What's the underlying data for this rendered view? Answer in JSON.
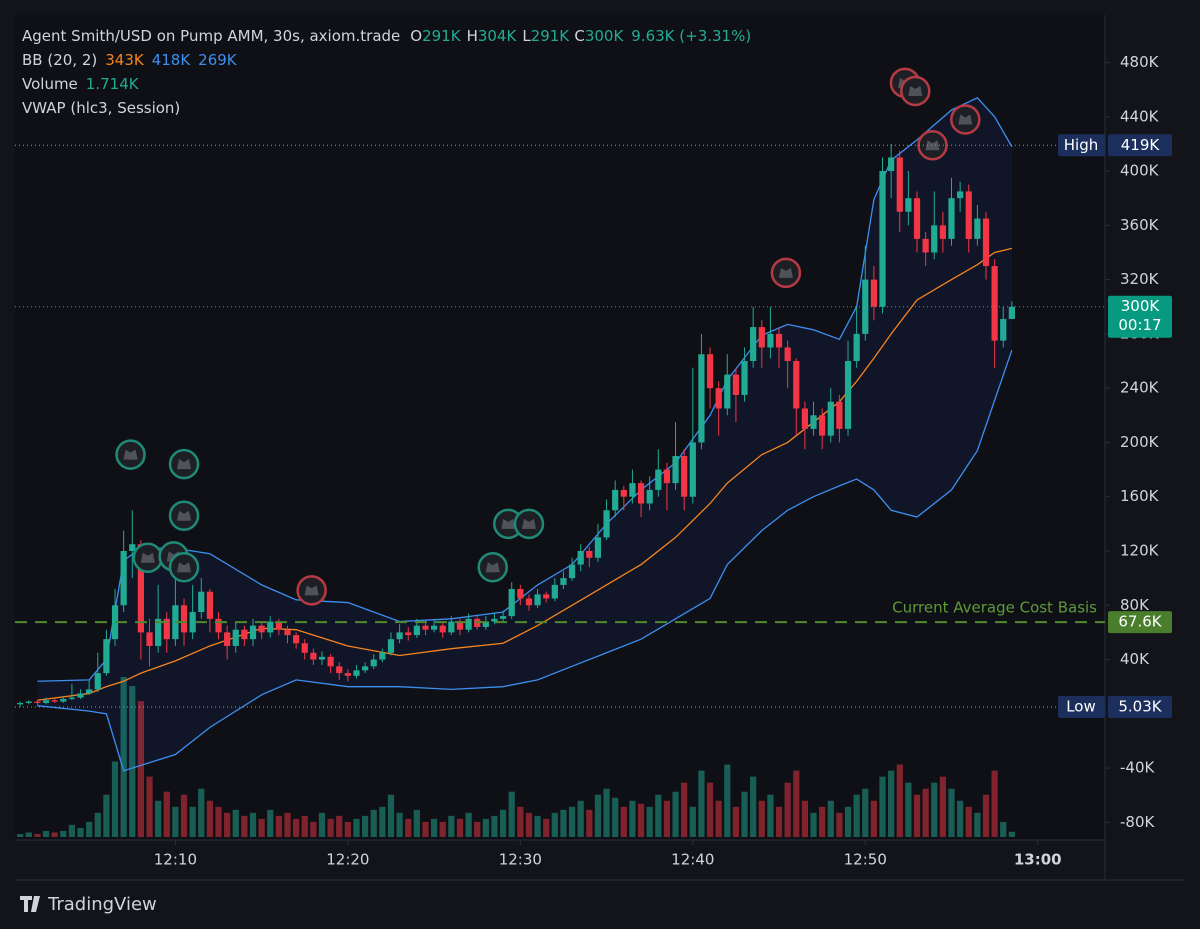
{
  "chart_data": {
    "type": "candlestick",
    "title": "Agent Smith/USD on Pump AMM, 30s, axiom.trade",
    "ohlc_legend": [
      {
        "key": "O",
        "label": "291K"
      },
      {
        "key": "H",
        "label": "304K"
      },
      {
        "key": "L",
        "label": "291K"
      },
      {
        "key": "C",
        "label": "300K"
      }
    ],
    "change_label": "9.63K (+3.31%)",
    "indicators": [
      {
        "name": "BB (20, 2)",
        "labels": [
          "343K",
          "418K",
          "269K"
        ]
      },
      {
        "name": "Volume",
        "labels": [
          "1.714K"
        ]
      },
      {
        "name": "VWAP (hlc3, Session)",
        "labels": []
      }
    ],
    "up_color": "#22ab94",
    "down_color": "#f23645",
    "x": [
      1,
      1.5,
      2,
      2.5,
      3,
      3.5,
      4,
      4.5,
      5,
      5.5,
      6,
      6.5,
      7,
      7.5,
      8,
      8.5,
      9,
      9.5,
      10,
      10.5,
      11,
      11.5,
      12,
      12.5,
      13,
      13.5,
      14,
      14.5,
      15,
      15.5,
      16,
      16.5,
      17,
      17.5,
      18,
      18.5,
      19,
      19.5,
      20,
      20.5,
      21,
      21.5,
      22,
      22.5,
      23,
      23.5,
      24,
      24.5,
      25,
      25.5,
      26,
      26.5,
      27,
      27.5,
      28,
      28.5,
      29,
      29.5,
      30,
      30.5,
      31,
      31.5,
      32,
      32.5,
      33,
      33.5,
      34,
      34.5,
      35,
      35.5,
      36,
      36.5,
      37,
      37.5,
      38,
      38.5,
      39,
      39.5,
      40,
      40.5,
      41,
      41.5,
      42,
      42.5,
      43,
      43.5,
      44,
      44.5,
      45,
      45.5,
      46,
      46.5,
      47,
      47.5,
      48,
      48.5,
      49,
      49.5,
      50,
      50.5,
      51,
      51.5,
      52,
      52.5,
      53,
      53.5,
      54,
      54.5,
      55,
      55.5,
      56,
      56.5,
      57,
      57.5,
      58,
      58.5
    ],
    "candles": [
      [
        7,
        9,
        5,
        8
      ],
      [
        8,
        10,
        7,
        9
      ],
      [
        9,
        10,
        6,
        8
      ],
      [
        8,
        12,
        7,
        10
      ],
      [
        10,
        11,
        8,
        9
      ],
      [
        9,
        13,
        8,
        11
      ],
      [
        11,
        22,
        10,
        12
      ],
      [
        12,
        18,
        11,
        15
      ],
      [
        15,
        25,
        14,
        18
      ],
      [
        18,
        45,
        16,
        30
      ],
      [
        30,
        62,
        28,
        55
      ],
      [
        55,
        92,
        50,
        80
      ],
      [
        80,
        135,
        75,
        120
      ],
      [
        120,
        150,
        100,
        125
      ],
      [
        125,
        128,
        40,
        60
      ],
      [
        60,
        70,
        35,
        50
      ],
      [
        50,
        95,
        45,
        70
      ],
      [
        70,
        75,
        45,
        55
      ],
      [
        55,
        105,
        50,
        80
      ],
      [
        80,
        85,
        50,
        60
      ],
      [
        60,
        95,
        55,
        75
      ],
      [
        75,
        100,
        70,
        90
      ],
      [
        90,
        92,
        60,
        70
      ],
      [
        70,
        75,
        55,
        60
      ],
      [
        60,
        65,
        40,
        50
      ],
      [
        50,
        68,
        45,
        62
      ],
      [
        62,
        65,
        50,
        55
      ],
      [
        55,
        70,
        50,
        65
      ],
      [
        65,
        68,
        55,
        60
      ],
      [
        60,
        72,
        56,
        68
      ],
      [
        68,
        70,
        58,
        62
      ],
      [
        62,
        65,
        52,
        58
      ],
      [
        58,
        60,
        48,
        52
      ],
      [
        52,
        55,
        40,
        45
      ],
      [
        45,
        48,
        36,
        40
      ],
      [
        40,
        46,
        36,
        42
      ],
      [
        42,
        44,
        30,
        35
      ],
      [
        35,
        38,
        25,
        30
      ],
      [
        30,
        33,
        24,
        28
      ],
      [
        28,
        36,
        26,
        32
      ],
      [
        32,
        38,
        30,
        35
      ],
      [
        35,
        44,
        33,
        40
      ],
      [
        40,
        48,
        38,
        45
      ],
      [
        45,
        60,
        43,
        55
      ],
      [
        55,
        66,
        52,
        60
      ],
      [
        60,
        64,
        54,
        58
      ],
      [
        58,
        70,
        56,
        65
      ],
      [
        65,
        68,
        58,
        62
      ],
      [
        62,
        70,
        60,
        65
      ],
      [
        65,
        68,
        56,
        60
      ],
      [
        60,
        72,
        58,
        68
      ],
      [
        68,
        70,
        58,
        62
      ],
      [
        62,
        74,
        60,
        70
      ],
      [
        70,
        72,
        62,
        64
      ],
      [
        64,
        72,
        62,
        68
      ],
      [
        68,
        74,
        66,
        70
      ],
      [
        70,
        76,
        68,
        72
      ],
      [
        72,
        97,
        70,
        92
      ],
      [
        92,
        95,
        80,
        85
      ],
      [
        85,
        88,
        76,
        80
      ],
      [
        80,
        92,
        78,
        88
      ],
      [
        88,
        90,
        82,
        85
      ],
      [
        85,
        100,
        83,
        95
      ],
      [
        95,
        105,
        92,
        100
      ],
      [
        100,
        115,
        98,
        110
      ],
      [
        110,
        125,
        105,
        120
      ],
      [
        120,
        123,
        108,
        115
      ],
      [
        115,
        140,
        112,
        130
      ],
      [
        130,
        158,
        128,
        150
      ],
      [
        150,
        172,
        145,
        165
      ],
      [
        165,
        168,
        150,
        160
      ],
      [
        160,
        180,
        155,
        170
      ],
      [
        170,
        172,
        145,
        155
      ],
      [
        155,
        175,
        150,
        165
      ],
      [
        165,
        195,
        160,
        180
      ],
      [
        180,
        185,
        150,
        170
      ],
      [
        170,
        215,
        165,
        190
      ],
      [
        190,
        195,
        150,
        160
      ],
      [
        160,
        255,
        155,
        200
      ],
      [
        200,
        280,
        195,
        265
      ],
      [
        265,
        270,
        225,
        240
      ],
      [
        240,
        245,
        205,
        225
      ],
      [
        225,
        265,
        220,
        250
      ],
      [
        250,
        255,
        215,
        235
      ],
      [
        235,
        270,
        230,
        260
      ],
      [
        260,
        300,
        255,
        285
      ],
      [
        285,
        290,
        255,
        270
      ],
      [
        270,
        300,
        262,
        280
      ],
      [
        280,
        285,
        255,
        270
      ],
      [
        270,
        275,
        240,
        260
      ],
      [
        260,
        262,
        205,
        225
      ],
      [
        225,
        230,
        195,
        210
      ],
      [
        210,
        230,
        205,
        220
      ],
      [
        220,
        225,
        195,
        205
      ],
      [
        205,
        240,
        200,
        230
      ],
      [
        230,
        235,
        200,
        210
      ],
      [
        210,
        275,
        205,
        260
      ],
      [
        260,
        300,
        255,
        280
      ],
      [
        280,
        345,
        275,
        320
      ],
      [
        320,
        330,
        290,
        300
      ],
      [
        300,
        410,
        295,
        400
      ],
      [
        400,
        420,
        380,
        410
      ],
      [
        410,
        415,
        355,
        370
      ],
      [
        370,
        400,
        360,
        380
      ],
      [
        380,
        385,
        340,
        350
      ],
      [
        350,
        355,
        330,
        340
      ],
      [
        340,
        385,
        335,
        360
      ],
      [
        360,
        370,
        340,
        350
      ],
      [
        350,
        395,
        345,
        380
      ],
      [
        380,
        392,
        370,
        385
      ],
      [
        385,
        390,
        340,
        350
      ],
      [
        350,
        375,
        345,
        365
      ],
      [
        365,
        370,
        320,
        330
      ],
      [
        330,
        335,
        255,
        275
      ],
      [
        275,
        300,
        270,
        291
      ],
      [
        291,
        304,
        291,
        300
      ]
    ],
    "volume": [
      1,
      1.5,
      1,
      2,
      1.5,
      2,
      4,
      3,
      5,
      8,
      14,
      25,
      53,
      50,
      45,
      20,
      12,
      15,
      10,
      14,
      10,
      16,
      12,
      10,
      8,
      9,
      7,
      8,
      6,
      9,
      7,
      8,
      6,
      7,
      5,
      8,
      6,
      7,
      5,
      6,
      7,
      9,
      10,
      14,
      8,
      6,
      9,
      5,
      6,
      5,
      7,
      6,
      8,
      5,
      6,
      7,
      9,
      15,
      10,
      8,
      7,
      6,
      8,
      9,
      10,
      12,
      9,
      14,
      16,
      13,
      10,
      12,
      11,
      10,
      14,
      12,
      15,
      18,
      10,
      22,
      18,
      12,
      24,
      10,
      15,
      20,
      12,
      14,
      10,
      18,
      22,
      12,
      8,
      10,
      12,
      8,
      10,
      14,
      16,
      12,
      20,
      22,
      24,
      18,
      14,
      16,
      18,
      20,
      16,
      12,
      10,
      8,
      14,
      22,
      5,
      1.714
    ],
    "bands": {
      "x": [
        2,
        5,
        6,
        7,
        8,
        10,
        12,
        15,
        17,
        20,
        23,
        26,
        29,
        31,
        33,
        35,
        37,
        39,
        41,
        42,
        44,
        45.5,
        47,
        48.5,
        49.5,
        50.5,
        51.5,
        53,
        55,
        56.5,
        57.5,
        58.5
      ],
      "series": [
        {
          "color": "#f7841e",
          "values": [
            10,
            15,
            20,
            24,
            30,
            39,
            50,
            63,
            62,
            50,
            43,
            48,
            52,
            65,
            80,
            95,
            110,
            130,
            155,
            170,
            191,
            200,
            215,
            230,
            245,
            262,
            280,
            305,
            320,
            331,
            340,
            343
          ]
        },
        {
          "color": "#3d8ef0",
          "values": [
            24,
            25,
            40,
            113,
            122,
            122,
            118,
            95,
            84,
            82,
            68,
            70,
            75,
            95,
            110,
            140,
            165,
            185,
            220,
            246,
            279,
            287,
            283,
            276,
            300,
            379,
            408,
            423,
            445,
            454,
            440,
            418
          ]
        },
        {
          "color": "#3d8ef0",
          "values": [
            6,
            2,
            0,
            -42,
            -38,
            -30,
            -10,
            14,
            25,
            20,
            20,
            18,
            20,
            25,
            35,
            45,
            55,
            70,
            85,
            110,
            135,
            150,
            160,
            168,
            173,
            165,
            150,
            145,
            165,
            194,
            231,
            268
          ]
        }
      ]
    },
    "levels": [
      {
        "name": "High",
        "value": 419,
        "label": "419K"
      },
      {
        "name": "Low",
        "value": 5.03,
        "label": "5.03K"
      },
      {
        "name": "Current Average Cost Basis",
        "value": 67.6,
        "label": "67.6K"
      },
      {
        "value": 300,
        "label": "300K",
        "sublabel": "00:17"
      }
    ],
    "markers": [
      {
        "x": 7.4,
        "y": 191,
        "color": "#1f8a78"
      },
      {
        "x": 10.5,
        "y": 184,
        "color": "#1f8a78"
      },
      {
        "x": 10.5,
        "y": 146,
        "color": "#1f8a78"
      },
      {
        "x": 8.4,
        "y": 115,
        "color": "#1f8a78"
      },
      {
        "x": 9.9,
        "y": 116,
        "color": "#1f8a78"
      },
      {
        "x": 10.5,
        "y": 108,
        "color": "#1f8a78"
      },
      {
        "x": 28.4,
        "y": 108,
        "color": "#1f8a78"
      },
      {
        "x": 29.3,
        "y": 140,
        "color": "#1f8a78"
      },
      {
        "x": 30.5,
        "y": 140,
        "color": "#1f8a78"
      },
      {
        "x": 17.9,
        "y": 91,
        "color": "#b53a44"
      },
      {
        "x": 45.4,
        "y": 325,
        "color": "#b53a44"
      },
      {
        "x": 52.3,
        "y": 465,
        "color": "#b53a44"
      },
      {
        "x": 52.9,
        "y": 459,
        "color": "#b53a44"
      },
      {
        "x": 53.9,
        "y": 419,
        "color": "#b53a44"
      },
      {
        "x": 55.8,
        "y": 438,
        "color": "#b53a44"
      }
    ],
    "ylim": [
      -93,
      515
    ],
    "yticks": [
      {
        "value": 480,
        "label": "480K"
      },
      {
        "value": 440,
        "label": "440K"
      },
      {
        "value": 400,
        "label": "400K"
      },
      {
        "value": 360,
        "label": "360K"
      },
      {
        "value": 320,
        "label": "320K"
      },
      {
        "value": 280,
        "label": "280K"
      },
      {
        "value": 240,
        "label": "240K"
      },
      {
        "value": 200,
        "label": "200K"
      },
      {
        "value": 160,
        "label": "160K"
      },
      {
        "value": 120,
        "label": "120K"
      },
      {
        "value": 80,
        "label": "80K"
      },
      {
        "value": 40,
        "label": "40K"
      },
      {
        "value": -40,
        "label": "-40K"
      },
      {
        "value": -80,
        "label": "-80K"
      }
    ],
    "xlim": [
      0.7,
      63.9
    ],
    "xticks": [
      {
        "value": 10,
        "label": "12:10"
      },
      {
        "value": 20,
        "label": "12:20"
      },
      {
        "value": 30,
        "label": "12:30"
      },
      {
        "value": 40,
        "label": "12:40"
      },
      {
        "value": 50,
        "label": "12:50"
      },
      {
        "value": 60,
        "label": "13:00"
      }
    ],
    "footer": "TradingView"
  }
}
